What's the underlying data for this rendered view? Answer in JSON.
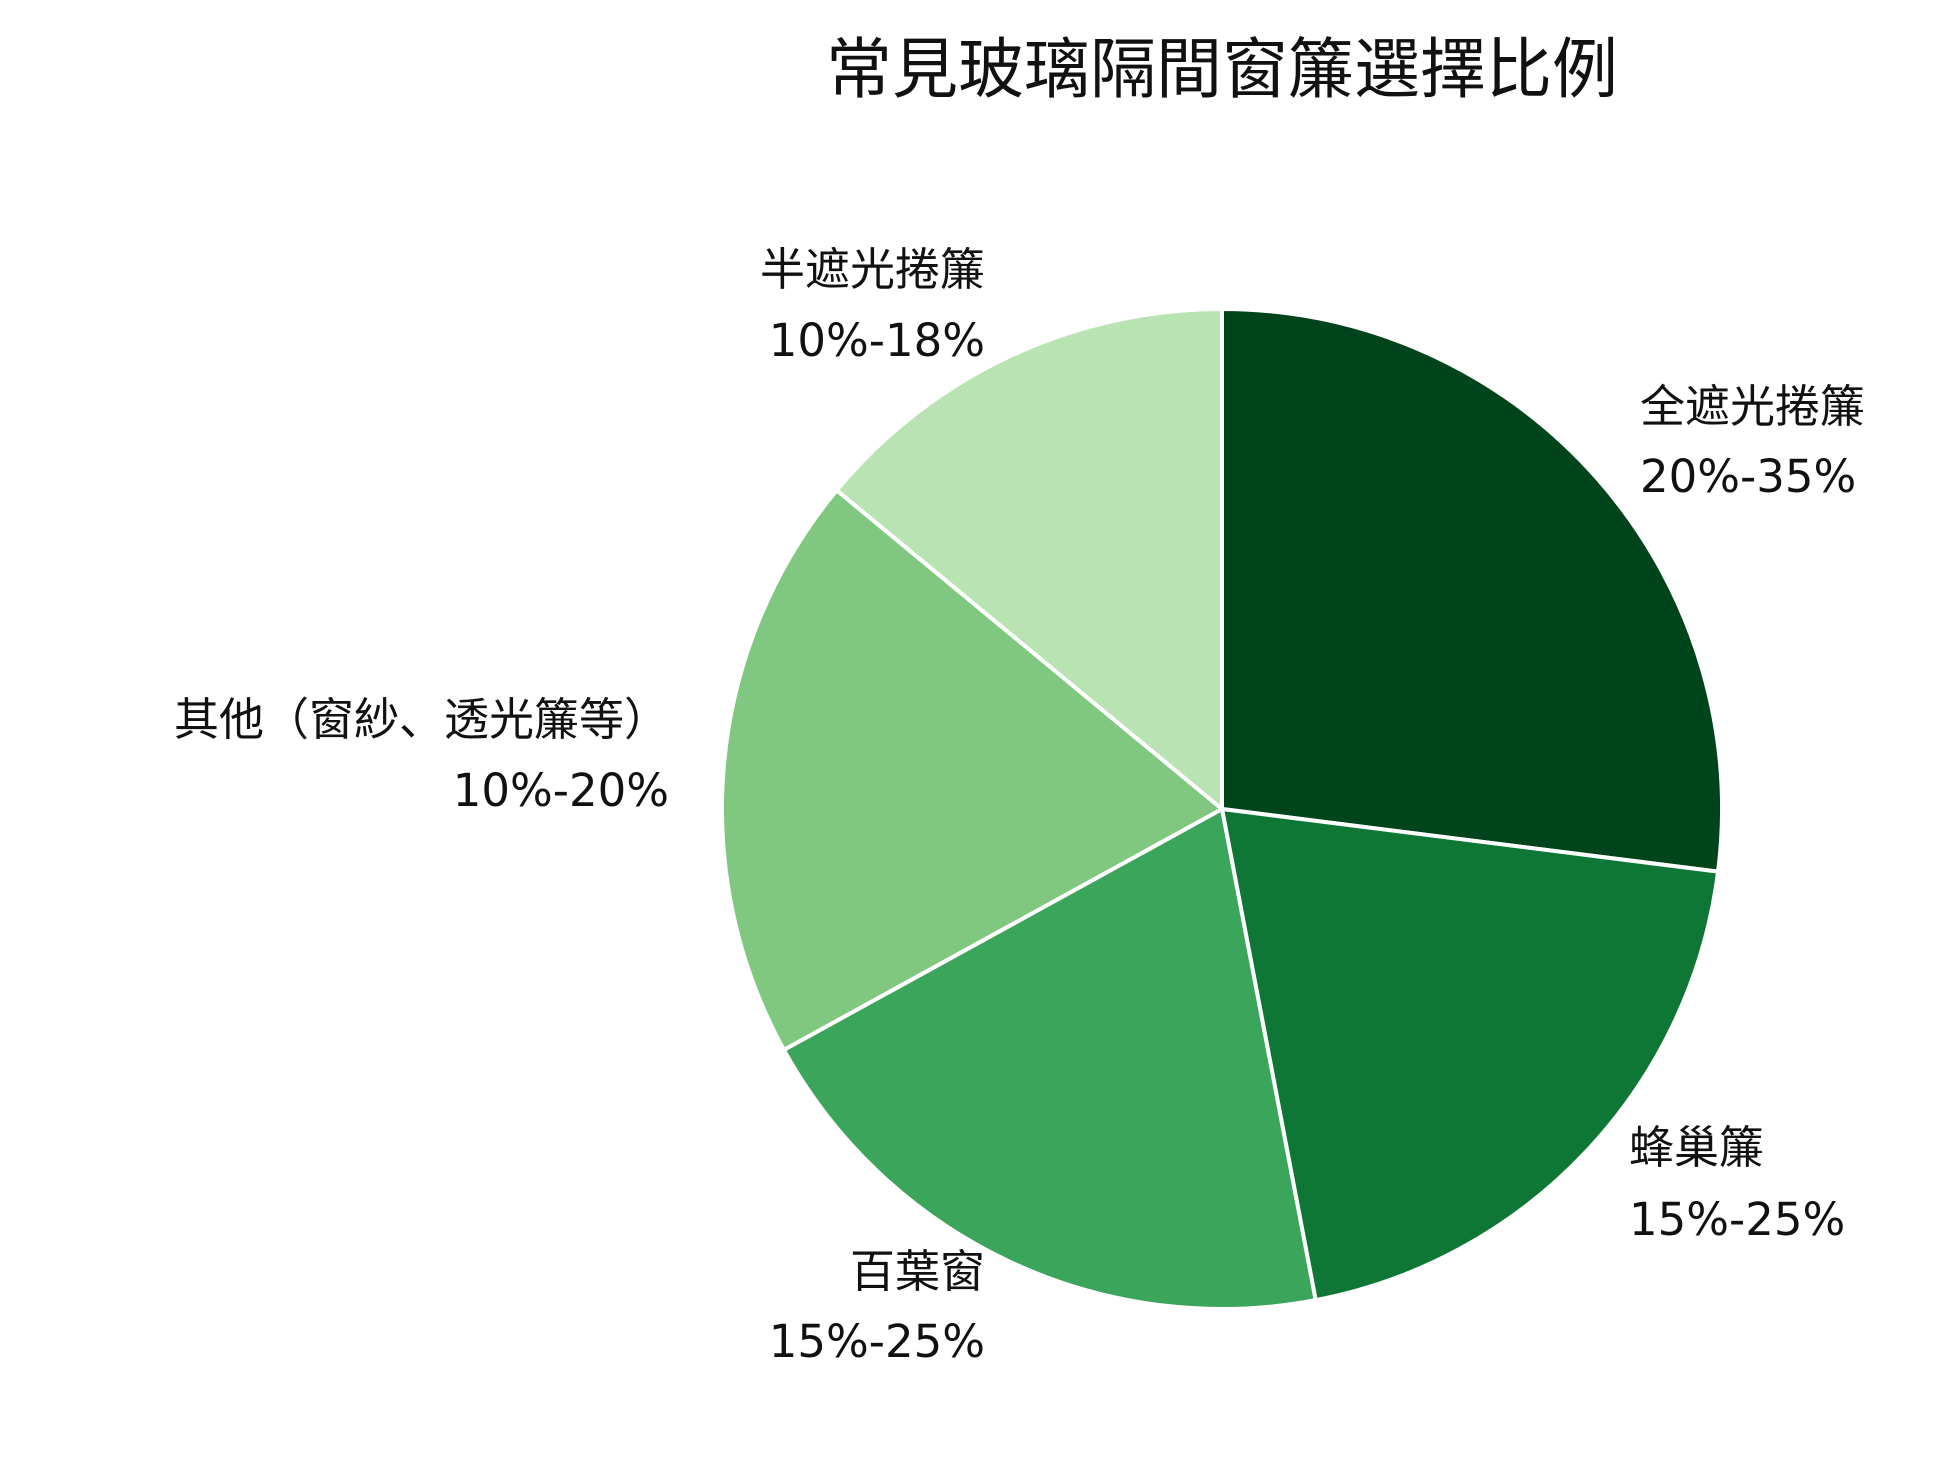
{
  "chart_data": {
    "type": "pie",
    "title": "常見玻璃隔間窗簾選擇比例",
    "start": "top",
    "direction": "clockwise",
    "slices": [
      {
        "name": "全遮光捲簾",
        "range": "20%-35%",
        "value": 27,
        "color": "#00441b"
      },
      {
        "name": "蜂巢簾",
        "range": "15%-25%",
        "value": 20,
        "color": "#0e7735"
      },
      {
        "name": "百葉窗",
        "range": "15%-25%",
        "value": 20,
        "color": "#3ba55b"
      },
      {
        "name": "其他（窗紗、透光簾等）",
        "range": "10%-20%",
        "value": 19,
        "color": "#80c77f"
      },
      {
        "name": "半遮光捲簾",
        "range": "10%-18%",
        "value": 14,
        "color": "#b9e3b2"
      }
    ]
  }
}
